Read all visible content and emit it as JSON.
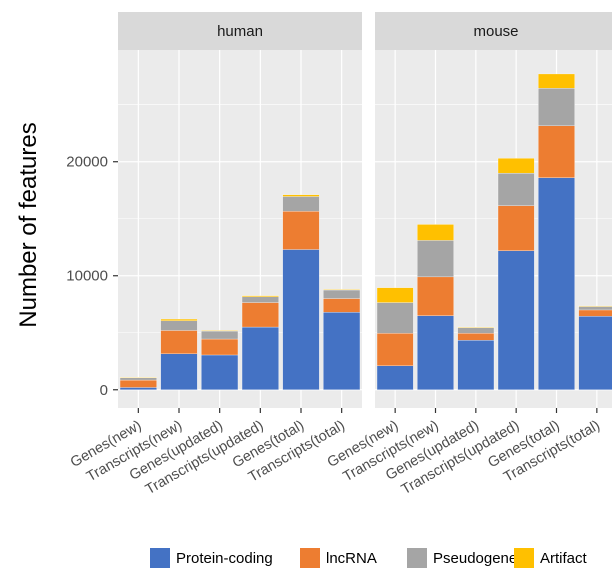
{
  "chart_data": {
    "type": "bar",
    "stacked": true,
    "xlabel": "",
    "ylabel": "Number of features",
    "ylim": [
      -1600,
      29800
    ],
    "yticks": [
      0,
      10000,
      20000
    ],
    "ytick_labels": [
      "0",
      "10000",
      "20000"
    ],
    "grid": true,
    "legend_position": "bottom",
    "categories": [
      "Genes(new)",
      "Transcripts(new)",
      "Genes(updated)",
      "Transcripts(updated)",
      "Genes(total)",
      "Transcripts(total)"
    ],
    "series_names": [
      "Protein-coding",
      "lncRNA",
      "Pseudogene",
      "Artifact"
    ],
    "colors": {
      "Protein-coding": "#4472c4",
      "lncRNA": "#ed7d31",
      "Pseudogene": "#a5a5a5",
      "Artifact": "#ffc000"
    },
    "panels": [
      {
        "facet": "human",
        "series": [
          {
            "name": "Protein-coding",
            "values": [
              200,
              3150,
              3050,
              5500,
              12300,
              6800
            ]
          },
          {
            "name": "lncRNA",
            "values": [
              650,
              2050,
              1400,
              2150,
              3350,
              1200
            ]
          },
          {
            "name": "Pseudogene",
            "values": [
              200,
              850,
              700,
              500,
              1300,
              750
            ]
          },
          {
            "name": "Artifact",
            "values": [
              50,
              150,
              50,
              100,
              150,
              50
            ]
          }
        ]
      },
      {
        "facet": "mouse",
        "series": [
          {
            "name": "Protein-coding",
            "values": [
              2100,
              6500,
              4350,
              12200,
              18600,
              6450
            ]
          },
          {
            "name": "lncRNA",
            "values": [
              2850,
              3400,
              600,
              3950,
              4550,
              550
            ]
          },
          {
            "name": "Pseudogene",
            "values": [
              2700,
              3200,
              500,
              2850,
              3300,
              300
            ]
          },
          {
            "name": "Artifact",
            "values": [
              1300,
              1400,
              50,
              1300,
              1250,
              50
            ]
          }
        ]
      }
    ]
  }
}
